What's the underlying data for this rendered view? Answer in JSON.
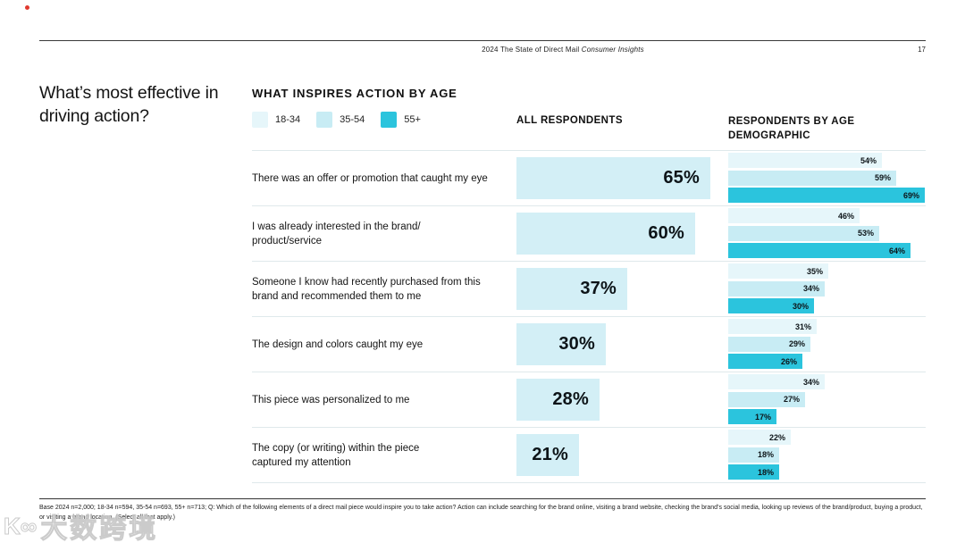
{
  "header": {
    "title_regular": "2024 The State of Direct Mail ",
    "title_italic": "Consumer Insights",
    "page_number": "17"
  },
  "left_title": "What’s most effective in driving action?",
  "chart": {
    "title": "WHAT INSPIRES ACTION BY AGE",
    "columns": {
      "all": "ALL RESPONDENTS",
      "age": "RESPONDENTS BY AGE DEMOGRAPHIC"
    },
    "legend": [
      {
        "label": "18-34",
        "color": "#e6f6fa"
      },
      {
        "label": "35-54",
        "color": "#c8ecf4"
      },
      {
        "label": "55+",
        "color": "#2bc4dd"
      }
    ],
    "colors": {
      "all_respondents_bar": "#d3eff6",
      "accent_dark": "#2bc4dd",
      "separator": "#dfe9eb"
    }
  },
  "chart_data": {
    "type": "bar",
    "orientation": "horizontal",
    "title": "WHAT INSPIRES ACTION BY AGE",
    "unit": "percent",
    "value_labels": true,
    "legend_position": "top-left",
    "xlim": [
      0,
      70
    ],
    "categories": [
      "There was an offer or promotion that caught my eye",
      "I was already interested in the brand/\nproduct/service",
      "Someone I know had recently purchased from this\nbrand and recommended them to me",
      "The design and colors caught my eye",
      "This piece was personalized to me",
      "The copy (or writing) within the piece\ncaptured my attention"
    ],
    "series": [
      {
        "name": "All respondents",
        "values": [
          65,
          60,
          37,
          30,
          28,
          21
        ]
      },
      {
        "name": "18-34",
        "values": [
          54,
          46,
          35,
          31,
          34,
          22
        ]
      },
      {
        "name": "35-54",
        "values": [
          59,
          53,
          34,
          29,
          27,
          18
        ]
      },
      {
        "name": "55+",
        "values": [
          69,
          64,
          30,
          26,
          17,
          18
        ]
      }
    ]
  },
  "footnote": "Base 2024 n=2,000; 18-34 n=594, 35-54 n=693, 55+ n=713; Q: Which of the following elements of a direct mail piece would inspire you to take action? Action can include searching for the brand online, visiting a brand website, checking the brand’s social media, looking up reviews of the brand/product, buying a product, or visiting a brand location. (Select all that apply.)",
  "watermark": {
    "logo": "K∞",
    "text": "大数跨境"
  }
}
